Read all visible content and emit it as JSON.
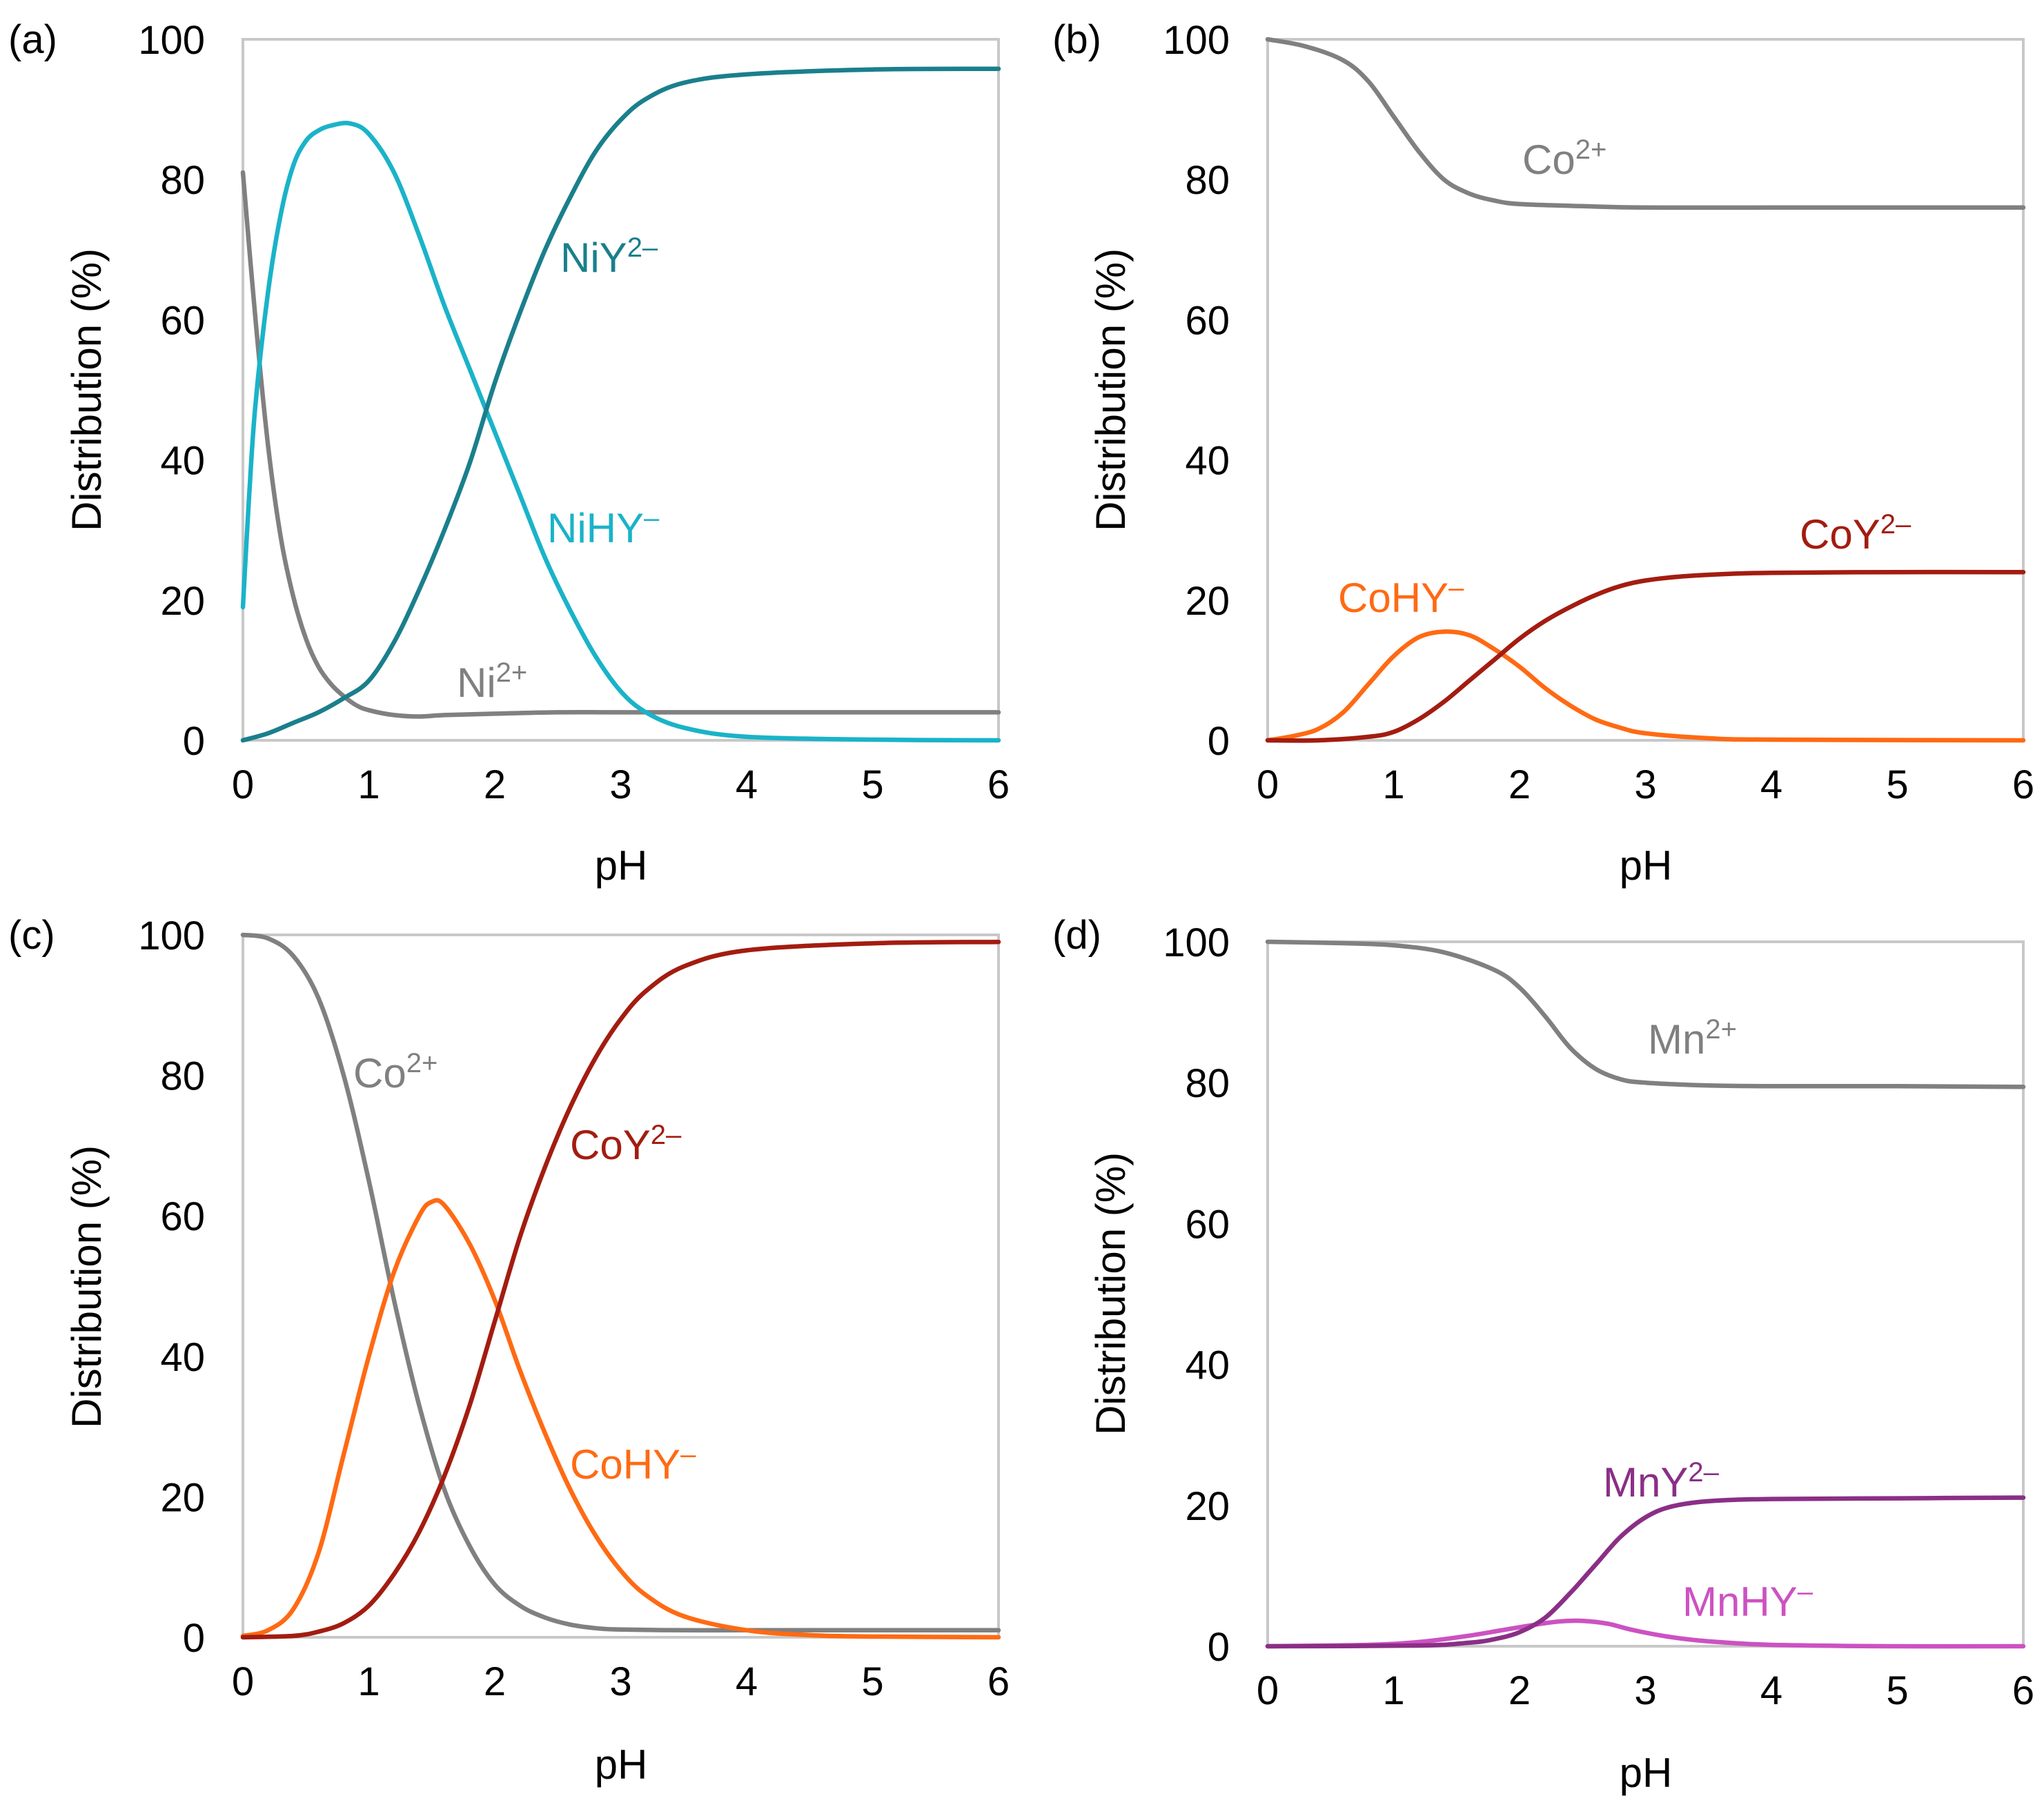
{
  "chart_data": [
    {
      "panel_label": "(a)",
      "type": "line",
      "xlabel": "pH",
      "ylabel": "Distribution (%)",
      "xlim": [
        0,
        6
      ],
      "ylim": [
        0,
        100
      ],
      "xticks": [
        "0",
        "1",
        "2",
        "3",
        "4",
        "5",
        "6"
      ],
      "yticks": [
        "0",
        "20",
        "40",
        "60",
        "80",
        "100"
      ],
      "series": [
        {
          "name": "Ni²⁺",
          "label": "Ni",
          "sup": "2+",
          "color": "#808080",
          "points": [
            [
              0,
              81
            ],
            [
              0.1,
              60
            ],
            [
              0.2,
              42
            ],
            [
              0.3,
              29
            ],
            [
              0.4,
              20.5
            ],
            [
              0.5,
              14.5
            ],
            [
              0.6,
              10.5
            ],
            [
              0.7,
              8
            ],
            [
              0.8,
              6.3
            ],
            [
              0.9,
              5
            ],
            [
              1.0,
              4.3
            ],
            [
              1.2,
              3.6
            ],
            [
              1.4,
              3.4
            ],
            [
              1.6,
              3.6
            ],
            [
              2.0,
              3.8
            ],
            [
              2.5,
              4
            ],
            [
              3,
              4
            ],
            [
              4,
              4
            ],
            [
              5,
              4
            ],
            [
              6,
              4
            ]
          ]
        },
        {
          "name": "NiHY⁻",
          "label": "NiHY",
          "sup": "–",
          "color": "#1AB3C8",
          "points": [
            [
              0,
              19
            ],
            [
              0.05,
              35
            ],
            [
              0.1,
              48
            ],
            [
              0.2,
              64
            ],
            [
              0.3,
              75
            ],
            [
              0.4,
              82
            ],
            [
              0.5,
              85.5
            ],
            [
              0.6,
              87
            ],
            [
              0.7,
              87.7
            ],
            [
              0.85,
              88
            ],
            [
              1.0,
              86.5
            ],
            [
              1.2,
              81
            ],
            [
              1.4,
              72
            ],
            [
              1.6,
              62
            ],
            [
              1.8,
              53
            ],
            [
              2.0,
              44
            ],
            [
              2.2,
              35
            ],
            [
              2.4,
              26
            ],
            [
              2.6,
              18.5
            ],
            [
              2.8,
              12
            ],
            [
              3.0,
              7
            ],
            [
              3.2,
              4
            ],
            [
              3.5,
              1.8
            ],
            [
              4,
              0.5
            ],
            [
              5,
              0.1
            ],
            [
              6,
              0
            ]
          ]
        },
        {
          "name": "NiY²⁻",
          "label": "NiY",
          "sup": "2–",
          "color": "#1A7F8C",
          "points": [
            [
              0,
              0
            ],
            [
              0.2,
              1
            ],
            [
              0.4,
              2.5
            ],
            [
              0.6,
              4
            ],
            [
              0.8,
              6
            ],
            [
              1.0,
              8.5
            ],
            [
              1.2,
              14
            ],
            [
              1.4,
              21.5
            ],
            [
              1.6,
              30
            ],
            [
              1.8,
              39.5
            ],
            [
              2.0,
              51
            ],
            [
              2.2,
              61
            ],
            [
              2.4,
              70
            ],
            [
              2.6,
              77.5
            ],
            [
              2.8,
              84
            ],
            [
              3.0,
              88.5
            ],
            [
              3.2,
              91.5
            ],
            [
              3.5,
              93.8
            ],
            [
              4,
              95
            ],
            [
              5,
              95.7
            ],
            [
              6,
              95.8
            ]
          ]
        }
      ]
    },
    {
      "panel_label": "(b)",
      "type": "line",
      "xlabel": "pH",
      "ylabel": "Distribution (%)",
      "xlim": [
        0,
        6
      ],
      "ylim": [
        0,
        100
      ],
      "xticks": [
        "0",
        "1",
        "2",
        "3",
        "4",
        "5",
        "6"
      ],
      "yticks": [
        "0",
        "20",
        "40",
        "60",
        "80",
        "100"
      ],
      "series": [
        {
          "name": "Co²⁺",
          "label": "Co",
          "sup": "2+",
          "color": "#808080",
          "points": [
            [
              0,
              100
            ],
            [
              0.3,
              99
            ],
            [
              0.6,
              97
            ],
            [
              0.8,
              94
            ],
            [
              1.0,
              89
            ],
            [
              1.2,
              84
            ],
            [
              1.4,
              80
            ],
            [
              1.6,
              78
            ],
            [
              1.8,
              77
            ],
            [
              2.0,
              76.5
            ],
            [
              2.5,
              76.2
            ],
            [
              3,
              76
            ],
            [
              4,
              76
            ],
            [
              5,
              76
            ],
            [
              6,
              76
            ]
          ]
        },
        {
          "name": "CoHY⁻",
          "label": "CoHY",
          "sup": "–",
          "color": "#FF6A13",
          "points": [
            [
              0,
              0
            ],
            [
              0.2,
              0.6
            ],
            [
              0.4,
              1.6
            ],
            [
              0.6,
              4
            ],
            [
              0.8,
              8
            ],
            [
              1.0,
              12
            ],
            [
              1.2,
              14.7
            ],
            [
              1.4,
              15.5
            ],
            [
              1.6,
              15
            ],
            [
              1.8,
              13
            ],
            [
              2.0,
              10.5
            ],
            [
              2.2,
              7.5
            ],
            [
              2.4,
              5
            ],
            [
              2.6,
              3
            ],
            [
              2.8,
              1.8
            ],
            [
              3.0,
              1
            ],
            [
              3.5,
              0.3
            ],
            [
              4,
              0.1
            ],
            [
              6,
              0
            ]
          ]
        },
        {
          "name": "CoY²⁻",
          "label": "CoY",
          "sup": "2–",
          "color": "#A31C10",
          "points": [
            [
              0,
              0
            ],
            [
              0.4,
              0
            ],
            [
              0.8,
              0.5
            ],
            [
              1.0,
              1.2
            ],
            [
              1.2,
              3
            ],
            [
              1.4,
              5.5
            ],
            [
              1.6,
              8.5
            ],
            [
              1.8,
              11.5
            ],
            [
              2.0,
              14.5
            ],
            [
              2.2,
              17
            ],
            [
              2.4,
              19
            ],
            [
              2.6,
              20.7
            ],
            [
              2.8,
              22
            ],
            [
              3.0,
              22.8
            ],
            [
              3.3,
              23.4
            ],
            [
              3.6,
              23.7
            ],
            [
              4,
              23.9
            ],
            [
              5,
              24
            ],
            [
              6,
              24
            ]
          ]
        }
      ]
    },
    {
      "panel_label": "(c)",
      "type": "line",
      "xlabel": "pH",
      "ylabel": "Distribution (%)",
      "xlim": [
        0,
        6
      ],
      "ylim": [
        0,
        100
      ],
      "xticks": [
        "0",
        "1",
        "2",
        "3",
        "4",
        "5",
        "6"
      ],
      "yticks": [
        "0",
        "20",
        "40",
        "60",
        "80",
        "100"
      ],
      "series": [
        {
          "name": "Co²⁺",
          "label": "Co",
          "sup": "2+",
          "color": "#808080",
          "points": [
            [
              0,
              100
            ],
            [
              0.2,
              99.5
            ],
            [
              0.4,
              97
            ],
            [
              0.6,
              91
            ],
            [
              0.8,
              80
            ],
            [
              1.0,
              65
            ],
            [
              1.2,
              48
            ],
            [
              1.4,
              33
            ],
            [
              1.6,
              21
            ],
            [
              1.8,
              13
            ],
            [
              2.0,
              7.5
            ],
            [
              2.2,
              4.5
            ],
            [
              2.4,
              2.8
            ],
            [
              2.6,
              1.8
            ],
            [
              2.8,
              1.3
            ],
            [
              3.0,
              1.1
            ],
            [
              3.5,
              1
            ],
            [
              4,
              1
            ],
            [
              5,
              1
            ],
            [
              6,
              1
            ]
          ]
        },
        {
          "name": "CoHY⁻",
          "label": "CoHY",
          "sup": "–",
          "color": "#FF6A13",
          "points": [
            [
              0,
              0.2
            ],
            [
              0.2,
              1
            ],
            [
              0.4,
              4
            ],
            [
              0.6,
              12
            ],
            [
              0.8,
              26
            ],
            [
              1.0,
              40
            ],
            [
              1.2,
              52
            ],
            [
              1.4,
              60
            ],
            [
              1.5,
              62
            ],
            [
              1.6,
              61.5
            ],
            [
              1.8,
              56
            ],
            [
              2.0,
              48
            ],
            [
              2.2,
              38
            ],
            [
              2.4,
              29
            ],
            [
              2.6,
              21
            ],
            [
              2.8,
              14.5
            ],
            [
              3.0,
              9.5
            ],
            [
              3.2,
              6
            ],
            [
              3.5,
              3
            ],
            [
              4,
              1
            ],
            [
              4.5,
              0.3
            ],
            [
              5,
              0.1
            ],
            [
              6,
              0
            ]
          ]
        },
        {
          "name": "CoY²⁻",
          "label": "CoY",
          "sup": "2–",
          "color": "#A31C10",
          "points": [
            [
              0,
              0
            ],
            [
              0.4,
              0.2
            ],
            [
              0.6,
              0.8
            ],
            [
              0.8,
              2
            ],
            [
              1.0,
              4.5
            ],
            [
              1.2,
              9
            ],
            [
              1.4,
              15
            ],
            [
              1.6,
              23
            ],
            [
              1.8,
              33
            ],
            [
              2.0,
              45
            ],
            [
              2.2,
              57
            ],
            [
              2.4,
              67
            ],
            [
              2.6,
              75.5
            ],
            [
              2.8,
              82.5
            ],
            [
              3.0,
              88
            ],
            [
              3.2,
              92
            ],
            [
              3.5,
              95.5
            ],
            [
              4,
              97.8
            ],
            [
              5,
              98.8
            ],
            [
              6,
              99
            ]
          ]
        }
      ]
    },
    {
      "panel_label": "(d)",
      "type": "line",
      "xlabel": "pH",
      "ylabel": "Distribution (%)",
      "xlim": [
        0,
        6
      ],
      "ylim": [
        0,
        100
      ],
      "xticks": [
        "0",
        "1",
        "2",
        "3",
        "4",
        "5",
        "6"
      ],
      "yticks": [
        "0",
        "20",
        "40",
        "60",
        "80",
        "100"
      ],
      "series": [
        {
          "name": "Mn²⁺",
          "label": "Mn",
          "sup": "2+",
          "color": "#808080",
          "points": [
            [
              0,
              100
            ],
            [
              0.6,
              99.8
            ],
            [
              1.0,
              99.5
            ],
            [
              1.4,
              98.5
            ],
            [
              1.8,
              96
            ],
            [
              2.0,
              93.5
            ],
            [
              2.2,
              89.5
            ],
            [
              2.4,
              85
            ],
            [
              2.6,
              82
            ],
            [
              2.8,
              80.5
            ],
            [
              3.0,
              80
            ],
            [
              3.5,
              79.6
            ],
            [
              4,
              79.5
            ],
            [
              5,
              79.5
            ],
            [
              6,
              79.4
            ]
          ]
        },
        {
          "name": "MnHY⁻",
          "label": "MnHY",
          "sup": "–",
          "color": "#CC52C2",
          "points": [
            [
              0,
              0
            ],
            [
              0.8,
              0.2
            ],
            [
              1.2,
              0.6
            ],
            [
              1.6,
              1.5
            ],
            [
              2.0,
              2.7
            ],
            [
              2.3,
              3.5
            ],
            [
              2.5,
              3.6
            ],
            [
              2.7,
              3.2
            ],
            [
              2.9,
              2.3
            ],
            [
              3.2,
              1.3
            ],
            [
              3.5,
              0.7
            ],
            [
              4,
              0.2
            ],
            [
              5,
              0
            ],
            [
              6,
              0
            ]
          ]
        },
        {
          "name": "MnY²⁻",
          "label": "MnY",
          "sup": "2–",
          "color": "#8A2F86",
          "points": [
            [
              0,
              0
            ],
            [
              1.2,
              0.1
            ],
            [
              1.6,
              0.5
            ],
            [
              1.8,
              1
            ],
            [
              2.0,
              2
            ],
            [
              2.2,
              4
            ],
            [
              2.4,
              7.5
            ],
            [
              2.6,
              11.5
            ],
            [
              2.8,
              15.5
            ],
            [
              3.0,
              18.3
            ],
            [
              3.2,
              19.8
            ],
            [
              3.5,
              20.6
            ],
            [
              4,
              20.9
            ],
            [
              5,
              21
            ],
            [
              6,
              21.1
            ]
          ]
        }
      ]
    }
  ]
}
